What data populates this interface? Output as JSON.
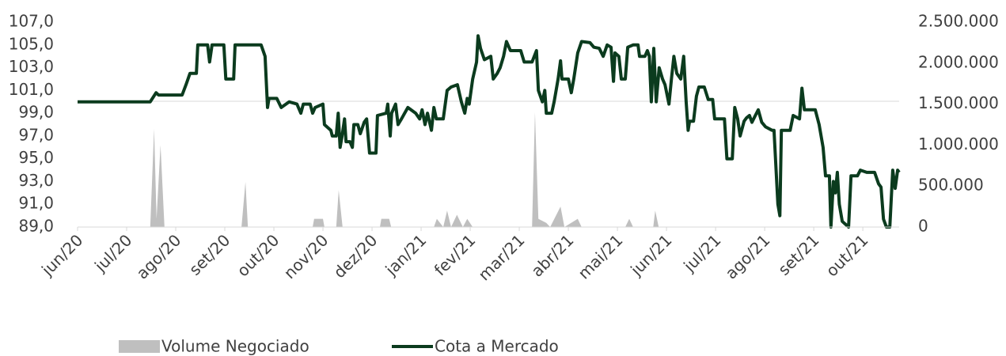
{
  "chart_data": {
    "type": "line",
    "xlim": [
      0,
      16.74
    ],
    "xticks": [
      {
        "value": 0,
        "label": "jun/20"
      },
      {
        "value": 1,
        "label": "jul/20"
      },
      {
        "value": 2,
        "label": "ago/20"
      },
      {
        "value": 3,
        "label": "set/20"
      },
      {
        "value": 4,
        "label": "out/20"
      },
      {
        "value": 5,
        "label": "nov/20"
      },
      {
        "value": 6,
        "label": "dez/20"
      },
      {
        "value": 7,
        "label": "jan/21"
      },
      {
        "value": 8,
        "label": "fev/21"
      },
      {
        "value": 9,
        "label": "mar/21"
      },
      {
        "value": 10,
        "label": "abr/21"
      },
      {
        "value": 11,
        "label": "mai/21"
      },
      {
        "value": 12,
        "label": "jun/21"
      },
      {
        "value": 13,
        "label": "jul/21"
      },
      {
        "value": 14,
        "label": "ago/21"
      },
      {
        "value": 15,
        "label": "set/21"
      },
      {
        "value": 16,
        "label": "out/21"
      }
    ],
    "ylim": [
      89,
      107
    ],
    "yticks": [
      {
        "value": 89,
        "label": "89,0"
      },
      {
        "value": 91,
        "label": "91,0"
      },
      {
        "value": 93,
        "label": "93,0"
      },
      {
        "value": 95,
        "label": "95,0"
      },
      {
        "value": 97,
        "label": "97,0"
      },
      {
        "value": 99,
        "label": "99,0"
      },
      {
        "value": 101,
        "label": "101,0"
      },
      {
        "value": 103,
        "label": "103,0"
      },
      {
        "value": 105,
        "label": "105,0"
      },
      {
        "value": 107,
        "label": "107,0"
      }
    ],
    "y2lim": [
      0,
      2500000
    ],
    "y2ticks": [
      0,
      {
        "value": 500000,
        "label": "500.000"
      },
      {
        "value": 1000000,
        "label": "1.000.000"
      },
      {
        "value": 1500000,
        "label": "1.500.000"
      },
      {
        "value": 2000000,
        "label": "2.000.000"
      },
      {
        "value": 2500000,
        "label": "2.500.000"
      }
    ],
    "legend": "bottom",
    "series": [
      {
        "name": "Volume Negociado",
        "type": "area",
        "axis": "y2",
        "color": "#bfbfbf",
        "x": [
          0,
          1.48,
          1.56,
          1.61,
          1.69,
          1.77,
          3.34,
          3.42,
          3.47,
          4.79,
          4.82,
          5.0,
          5.03,
          5.27,
          5.32,
          5.4,
          6.16,
          6.19,
          6.35,
          6.39,
          7.26,
          7.32,
          7.45,
          7.53,
          7.61,
          7.73,
          7.85,
          7.94,
          8.05,
          9.26,
          9.32,
          9.39,
          9.55,
          9.63,
          9.84,
          9.92,
          10.19,
          10.27,
          11.16,
          11.24,
          11.32,
          11.73,
          11.77,
          11.84,
          16.74
        ],
        "values": [
          0,
          0,
          1200000,
          100000,
          1000000,
          0,
          0,
          550000,
          0,
          0,
          100000,
          100000,
          0,
          0,
          450000,
          0,
          0,
          100000,
          100000,
          0,
          0,
          100000,
          0,
          200000,
          0,
          150000,
          0,
          100000,
          0,
          0,
          1400000,
          100000,
          50000,
          0,
          250000,
          0,
          100000,
          0,
          0,
          100000,
          0,
          0,
          200000,
          0,
          0
        ]
      },
      {
        "name": "Cota a Mercado",
        "type": "line",
        "color": "#0b3b1e",
        "x": [
          0,
          1.48,
          1.6,
          1.65,
          2.13,
          2.21,
          2.29,
          2.42,
          2.45,
          2.65,
          2.69,
          2.74,
          2.98,
          3.02,
          3.18,
          3.21,
          3.74,
          3.82,
          3.87,
          3.9,
          4.06,
          4.15,
          4.31,
          4.47,
          4.55,
          4.6,
          4.74,
          4.79,
          4.84,
          5.0,
          5.03,
          5.16,
          5.19,
          5.27,
          5.31,
          5.35,
          5.39,
          5.44,
          5.47,
          5.55,
          5.6,
          5.63,
          5.71,
          5.76,
          5.84,
          5.89,
          5.95,
          6.08,
          6.11,
          6.29,
          6.32,
          6.37,
          6.4,
          6.48,
          6.53,
          6.6,
          6.73,
          6.89,
          6.97,
          7.02,
          7.08,
          7.13,
          7.21,
          7.26,
          7.31,
          7.45,
          7.53,
          7.61,
          7.74,
          7.82,
          7.89,
          7.94,
          7.98,
          8.05,
          8.13,
          8.16,
          8.21,
          8.29,
          8.42,
          8.47,
          8.55,
          8.61,
          8.68,
          8.74,
          8.82,
          8.9,
          9.03,
          9.1,
          9.26,
          9.35,
          9.39,
          9.47,
          9.52,
          9.55,
          9.66,
          9.71,
          9.79,
          9.84,
          9.87,
          10.0,
          10.06,
          10.11,
          10.19,
          10.27,
          10.44,
          10.52,
          10.63,
          10.71,
          10.79,
          10.87,
          10.92,
          10.95,
          11.03,
          11.08,
          11.16,
          11.21,
          11.32,
          11.42,
          11.45,
          11.56,
          11.61,
          11.65,
          11.69,
          11.74,
          11.79,
          11.85,
          11.92,
          11.97,
          12.05,
          12.1,
          12.15,
          12.21,
          12.29,
          12.35,
          12.4,
          12.44,
          12.47,
          12.55,
          12.61,
          12.66,
          12.77,
          12.85,
          12.94,
          12.98,
          13.18,
          13.23,
          13.34,
          13.39,
          13.45,
          13.5,
          13.58,
          13.63,
          13.69,
          13.74,
          13.81,
          13.87,
          13.94,
          14.02,
          14.15,
          14.19,
          14.27,
          14.31,
          14.34,
          14.42,
          14.52,
          14.58,
          14.71,
          14.76,
          14.81,
          15.03,
          15.11,
          15.19,
          15.24,
          15.32,
          15.35,
          15.4,
          15.44,
          15.48,
          15.52,
          15.58,
          15.71,
          15.76,
          15.89,
          15.95,
          16.08,
          16.24,
          16.32,
          16.37,
          16.42,
          16.48,
          16.55,
          16.61,
          16.66,
          16.71,
          16.74
        ],
        "values": [
          100,
          100,
          100.8,
          100.6,
          100.6,
          101.5,
          102.5,
          102.5,
          105,
          105,
          103.5,
          105,
          105,
          102,
          102,
          105,
          105,
          104,
          99.5,
          100.3,
          100.3,
          99.5,
          100,
          99.8,
          99,
          99.8,
          99.8,
          99,
          99.5,
          99.8,
          98,
          97.5,
          97,
          97,
          99,
          96,
          97,
          98.5,
          96.5,
          96.5,
          96,
          98,
          98,
          97.2,
          98.2,
          98.5,
          95.5,
          95.5,
          98.8,
          99,
          99.8,
          97,
          99,
          99.8,
          98,
          98.5,
          99.5,
          99,
          98.5,
          99.3,
          98,
          99,
          97.5,
          99.5,
          98.5,
          98.5,
          101,
          101.3,
          101.5,
          100,
          99,
          100.3,
          99.8,
          102,
          103.5,
          105.8,
          104.7,
          103.7,
          104,
          102,
          102.5,
          103,
          104,
          105.3,
          104.5,
          104.5,
          104.5,
          103.5,
          103.5,
          104.5,
          101,
          100,
          101,
          99,
          99,
          100,
          102,
          103.6,
          102,
          102,
          100.8,
          102,
          104.3,
          105.3,
          105.2,
          104.8,
          104.7,
          104,
          105,
          104.8,
          101.8,
          104.3,
          104,
          102,
          102,
          104.8,
          105,
          105,
          104,
          104,
          104.5,
          104,
          100,
          104.7,
          100,
          103,
          102,
          101.5,
          99.8,
          102,
          104,
          102.5,
          102,
          104,
          100,
          97.5,
          98.3,
          98.3,
          100.5,
          101.3,
          101.3,
          100.2,
          100.2,
          98.5,
          98.5,
          95,
          95,
          99.5,
          98.5,
          97,
          98.3,
          98.6,
          98.8,
          98.2,
          98.8,
          99.3,
          98.2,
          97.8,
          97.5,
          97.5,
          91,
          90,
          97.5,
          97.5,
          97.5,
          98.8,
          98.5,
          101.2,
          99.3,
          99.3,
          98,
          96,
          93.5,
          93.5,
          89,
          93,
          92,
          93.8,
          91,
          89.5,
          89,
          93.5,
          93.5,
          94,
          93.8,
          93.8,
          92.8,
          92.5,
          89.7,
          89,
          89,
          94,
          92.4,
          94,
          93.8
        ]
      }
    ]
  }
}
